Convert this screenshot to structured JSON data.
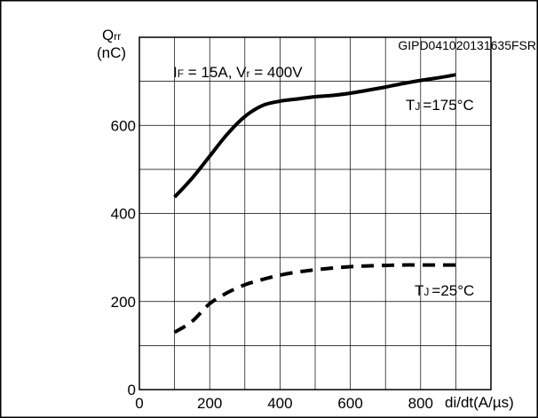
{
  "figure_id": "GIPD041020131635FSR",
  "chart_data": {
    "type": "line",
    "ylabel_symbol": "Q",
    "ylabel_sub": "rr",
    "ylabel_unit": "(nC)",
    "xlabel": "di/dt(A/µs)",
    "xlim": [
      0,
      1000
    ],
    "ylim": [
      0,
      800
    ],
    "x_ticks": [
      0,
      200,
      400,
      600,
      800
    ],
    "y_ticks": [
      0,
      200,
      400,
      600
    ],
    "grid": true,
    "condition": {
      "if_symbol": "I",
      "if_sub": "F",
      "if_value": " = 15A, ",
      "vr_symbol": "V",
      "vr_sub": "r",
      "vr_value": " = 400V"
    },
    "series": [
      {
        "label_symbol": "T",
        "label_sub": "J",
        "label_value": "=175°C",
        "style": "solid",
        "x": [
          100,
          150,
          200,
          250,
          300,
          350,
          400,
          450,
          500,
          550,
          600,
          650,
          700,
          750,
          800,
          850,
          900
        ],
        "y": [
          437,
          480,
          530,
          580,
          620,
          645,
          655,
          660,
          665,
          668,
          673,
          680,
          687,
          695,
          702,
          708,
          715
        ]
      },
      {
        "label_symbol": "T",
        "label_sub": "J",
        "label_value": "=25°C",
        "style": "dashed",
        "x": [
          100,
          150,
          200,
          250,
          300,
          350,
          400,
          450,
          500,
          550,
          600,
          650,
          700,
          750,
          800,
          850,
          900
        ],
        "y": [
          130,
          155,
          195,
          220,
          238,
          250,
          260,
          267,
          272,
          276,
          279,
          281,
          282,
          283,
          283,
          283,
          283
        ]
      }
    ]
  }
}
